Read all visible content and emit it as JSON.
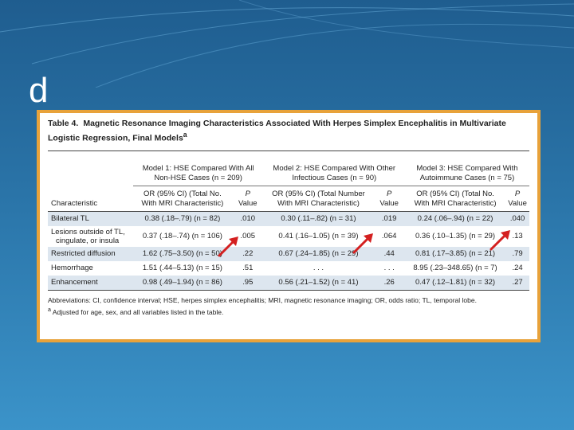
{
  "slide": {
    "letter": "d"
  },
  "table": {
    "number": "Table 4.",
    "title": "Magnetic Resonance Imaging Characteristics Associated With Herpes Simplex Encephalitis in Multivariate Logistic Regression, Final Models",
    "title_sup": "a",
    "models": [
      {
        "line1": "Model 1: HSE Compared With All",
        "line2": "Non-HSE Cases (n = 209)"
      },
      {
        "line1": "Model 2: HSE Compared With Other",
        "line2": "Infectious Cases (n = 90)"
      },
      {
        "line1": "Model 3: HSE Compared With",
        "line2": "Autoimmune Cases (n = 75)"
      }
    ],
    "char_header": "Characteristic",
    "or_headers": [
      {
        "line1": "OR (95% CI) (Total No.",
        "line2": "With MRI Characteristic)"
      },
      {
        "line1": "OR (95% CI) (Total Number",
        "line2": "With MRI Characteristic)"
      },
      {
        "line1": "OR (95% CI) (Total No.",
        "line2": "With MRI Characteristic)"
      }
    ],
    "p_header": {
      "line1": "P",
      "line2": "Value"
    },
    "rows": [
      {
        "char": "Bilateral TL",
        "char2": "",
        "cells": [
          {
            "or": "0.38 (.18–.79) (n = 82)",
            "p": ".010"
          },
          {
            "or": "0.30 (.11–.82) (n = 31)",
            "p": ".019"
          },
          {
            "or": "0.24 (.06–.94) (n = 22)",
            "p": ".040"
          }
        ]
      },
      {
        "char": "Lesions outside of TL,",
        "char2": "cingulate, or insula",
        "cells": [
          {
            "or": "0.37 (.18–.74) (n = 106)",
            "p": ".005"
          },
          {
            "or": "0.41 (.16–1.05) (n = 39)",
            "p": ".064"
          },
          {
            "or": "0.36 (.10–1.35) (n = 29)",
            "p": ".13"
          }
        ]
      },
      {
        "char": "Restricted diffusion",
        "char2": "",
        "cells": [
          {
            "or": "1.62 (.75–3.50) (n = 50)",
            "p": ".22"
          },
          {
            "or": "0.67 (.24–1.85) (n = 29)",
            "p": ".44"
          },
          {
            "or": "0.81 (.17–3.85) (n = 21)",
            "p": ".79"
          }
        ]
      },
      {
        "char": "Hemorrhage",
        "char2": "",
        "cells": [
          {
            "or": "1.51 (.44–5.13) (n = 15)",
            "p": ".51"
          },
          {
            "or": ". . .",
            "p": ". . ."
          },
          {
            "or": "8.95 (.23–348.65) (n = 7)",
            "p": ".24"
          }
        ]
      },
      {
        "char": "Enhancement",
        "char2": "",
        "cells": [
          {
            "or": "0.98 (.49–1.94) (n = 86)",
            "p": ".95"
          },
          {
            "or": "0.56 (.21–1.52) (n = 41)",
            "p": ".26"
          },
          {
            "or": "0.47 (.12–1.81) (n = 32)",
            "p": ".27"
          }
        ]
      }
    ],
    "abbreviations": "Abbreviations: CI, confidence interval; HSE, herpes simplex encephalitis; MRI, magnetic resonance imaging; OR, odds ratio; TL, temporal lobe.",
    "footnote_sup": "a",
    "footnote": "Adjusted for age, sex, and all variables listed in the table."
  },
  "annotations": {
    "arrow_color": "#d42020"
  }
}
